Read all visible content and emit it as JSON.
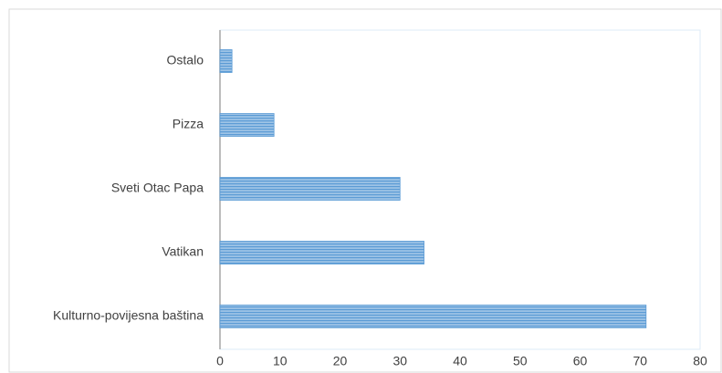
{
  "chart_data": {
    "type": "bar",
    "orientation": "horizontal",
    "categories": [
      "Ostalo",
      "Pizza",
      "Sveti Otac Papa",
      "Vatikan",
      "Kulturno-povijesna baština"
    ],
    "values": [
      2,
      9,
      30,
      34,
      71
    ],
    "color": "#5b9bd5",
    "xlim": [
      0,
      80
    ],
    "xticks": [
      0,
      10,
      20,
      30,
      40,
      50,
      60,
      70,
      80
    ],
    "grid": false
  }
}
